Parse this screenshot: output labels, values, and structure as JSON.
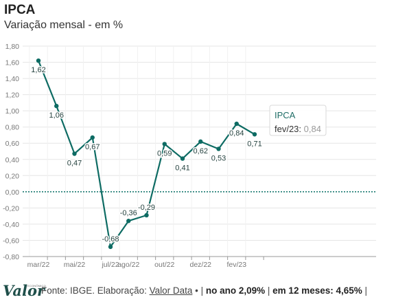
{
  "header": {
    "title": "IPCA",
    "subtitle": "Variação mensal - em %"
  },
  "footer": {
    "logo": "Valor",
    "logo_tag": "ECONÔMICO",
    "source_prefix": "Fonte: IBGE. Elaboração: ",
    "source_link": "Valor Data",
    "sep1": " • | ",
    "year_label": "no ano 2,09%",
    "sep2": " | ",
    "twelve_label": "em 12 meses: 4,65%",
    "sep3": " |"
  },
  "tooltip": {
    "title": "IPCA",
    "label": "fev/23: ",
    "value": "0,84"
  },
  "colors": {
    "line": "#0d6b63",
    "zero_line": "#1b7a72",
    "grid": "#e5e5e5",
    "axis_text": "#777777"
  },
  "chart_data": {
    "type": "line",
    "title": "IPCA",
    "subtitle": "Variação mensal - em %",
    "x": [
      "mar/22",
      "abr/22",
      "mai/22",
      "jun/22",
      "jul/22",
      "ago/22",
      "set/22",
      "out/22",
      "nov/22",
      "dez/22",
      "jan/23",
      "fev/23",
      "mar/23"
    ],
    "x_tick_labels": [
      "mar/22",
      "mai/22",
      "jul/22",
      "ago/22",
      "out/22",
      "dez/22",
      "fev/23"
    ],
    "series": [
      {
        "values": [
          1.62,
          1.06,
          0.47,
          0.67,
          -0.68,
          -0.36,
          -0.29,
          0.59,
          0.41,
          0.62,
          0.53,
          0.84,
          0.71
        ],
        "labels": [
          "1,62",
          "1,06",
          "0,47",
          "0,67",
          "-0,68",
          "-0,36",
          "-0,29",
          "0,59",
          "0,41",
          "0,62",
          "0,53",
          "0,84",
          "0,71"
        ]
      }
    ],
    "y_ticks": [
      "1,80",
      "1,60",
      "1,40",
      "1,20",
      "1,00",
      "0,80",
      "0,60",
      "0,40",
      "0,20",
      "0,00",
      "-0,20",
      "-0,40",
      "-0,60",
      "-0,80"
    ],
    "ylim": [
      -0.8,
      1.8
    ],
    "grid": true,
    "zero_line": "dotted"
  }
}
